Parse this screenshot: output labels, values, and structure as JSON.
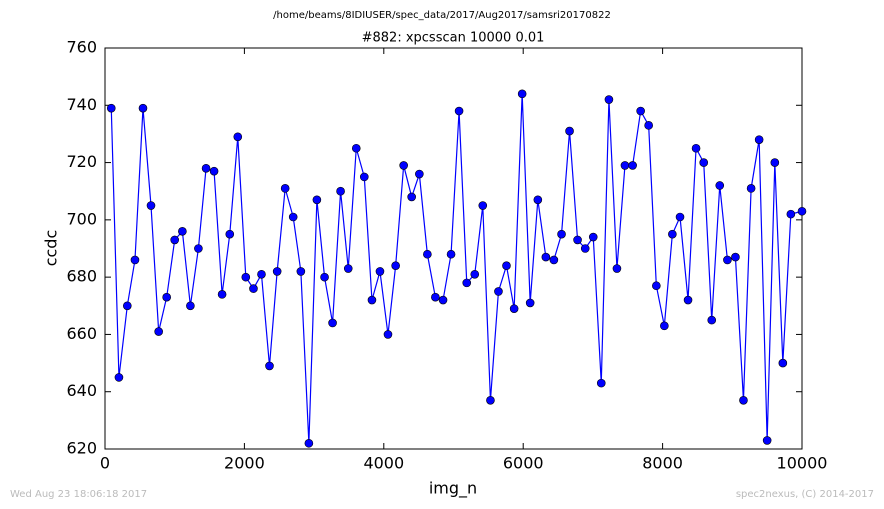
{
  "chart_data": {
    "type": "line",
    "suptitle": "/home/beams/8IDIUSER/spec_data/2017/Aug2017/samsri20170822",
    "title": "#882: xpcsscan 10000 0.01",
    "xlabel": "img_n",
    "ylabel": "ccdc",
    "x": [
      90,
      200,
      320,
      430,
      545,
      660,
      770,
      885,
      1000,
      1110,
      1225,
      1340,
      1450,
      1565,
      1680,
      1790,
      1905,
      2020,
      2130,
      2245,
      2360,
      2470,
      2585,
      2700,
      2810,
      2925,
      3040,
      3150,
      3265,
      3380,
      3490,
      3605,
      3720,
      3830,
      3945,
      4060,
      4170,
      4285,
      4400,
      4510,
      4625,
      4740,
      4850,
      4965,
      5080,
      5190,
      5305,
      5420,
      5530,
      5645,
      5760,
      5870,
      5985,
      6100,
      6210,
      6325,
      6440,
      6550,
      6665,
      6780,
      6890,
      7005,
      7120,
      7230,
      7345,
      7460,
      7570,
      7685,
      7800,
      7910,
      8025,
      8140,
      8250,
      8365,
      8480,
      8590,
      8705,
      8820,
      8930,
      9045,
      9160,
      9270,
      9385,
      9500,
      9610,
      9725,
      9840,
      10000
    ],
    "series": [
      {
        "name": "ccdc",
        "color": "#0000ff",
        "marker_color": "#0000ff",
        "values": [
          739,
          645,
          670,
          686,
          739,
          705,
          661,
          673,
          693,
          696,
          670,
          690,
          718,
          717,
          674,
          695,
          729,
          680,
          676,
          681,
          649,
          682,
          711,
          701,
          682,
          622,
          707,
          680,
          664,
          710,
          683,
          725,
          715,
          672,
          682,
          660,
          684,
          719,
          708,
          716,
          688,
          673,
          672,
          688,
          738,
          678,
          681,
          705,
          637,
          675,
          684,
          669,
          744,
          671,
          707,
          687,
          686,
          695,
          731,
          693,
          690,
          694,
          643,
          742,
          683,
          719,
          719,
          738,
          733,
          677,
          663,
          695,
          701,
          672,
          725,
          720,
          665,
          712,
          686,
          687,
          637,
          711,
          728,
          623,
          720,
          650,
          702,
          703
        ]
      }
    ],
    "xlim": [
      0,
      10000
    ],
    "xticks": [
      0,
      2000,
      4000,
      6000,
      8000,
      10000
    ],
    "ylim": [
      620,
      760
    ],
    "yticks": [
      620,
      640,
      660,
      680,
      700,
      720,
      740,
      760
    ],
    "grid": false
  },
  "footer_left": "Wed Aug 23 18:06:18 2017",
  "footer_right": "spec2nexus, (C) 2014-2017"
}
